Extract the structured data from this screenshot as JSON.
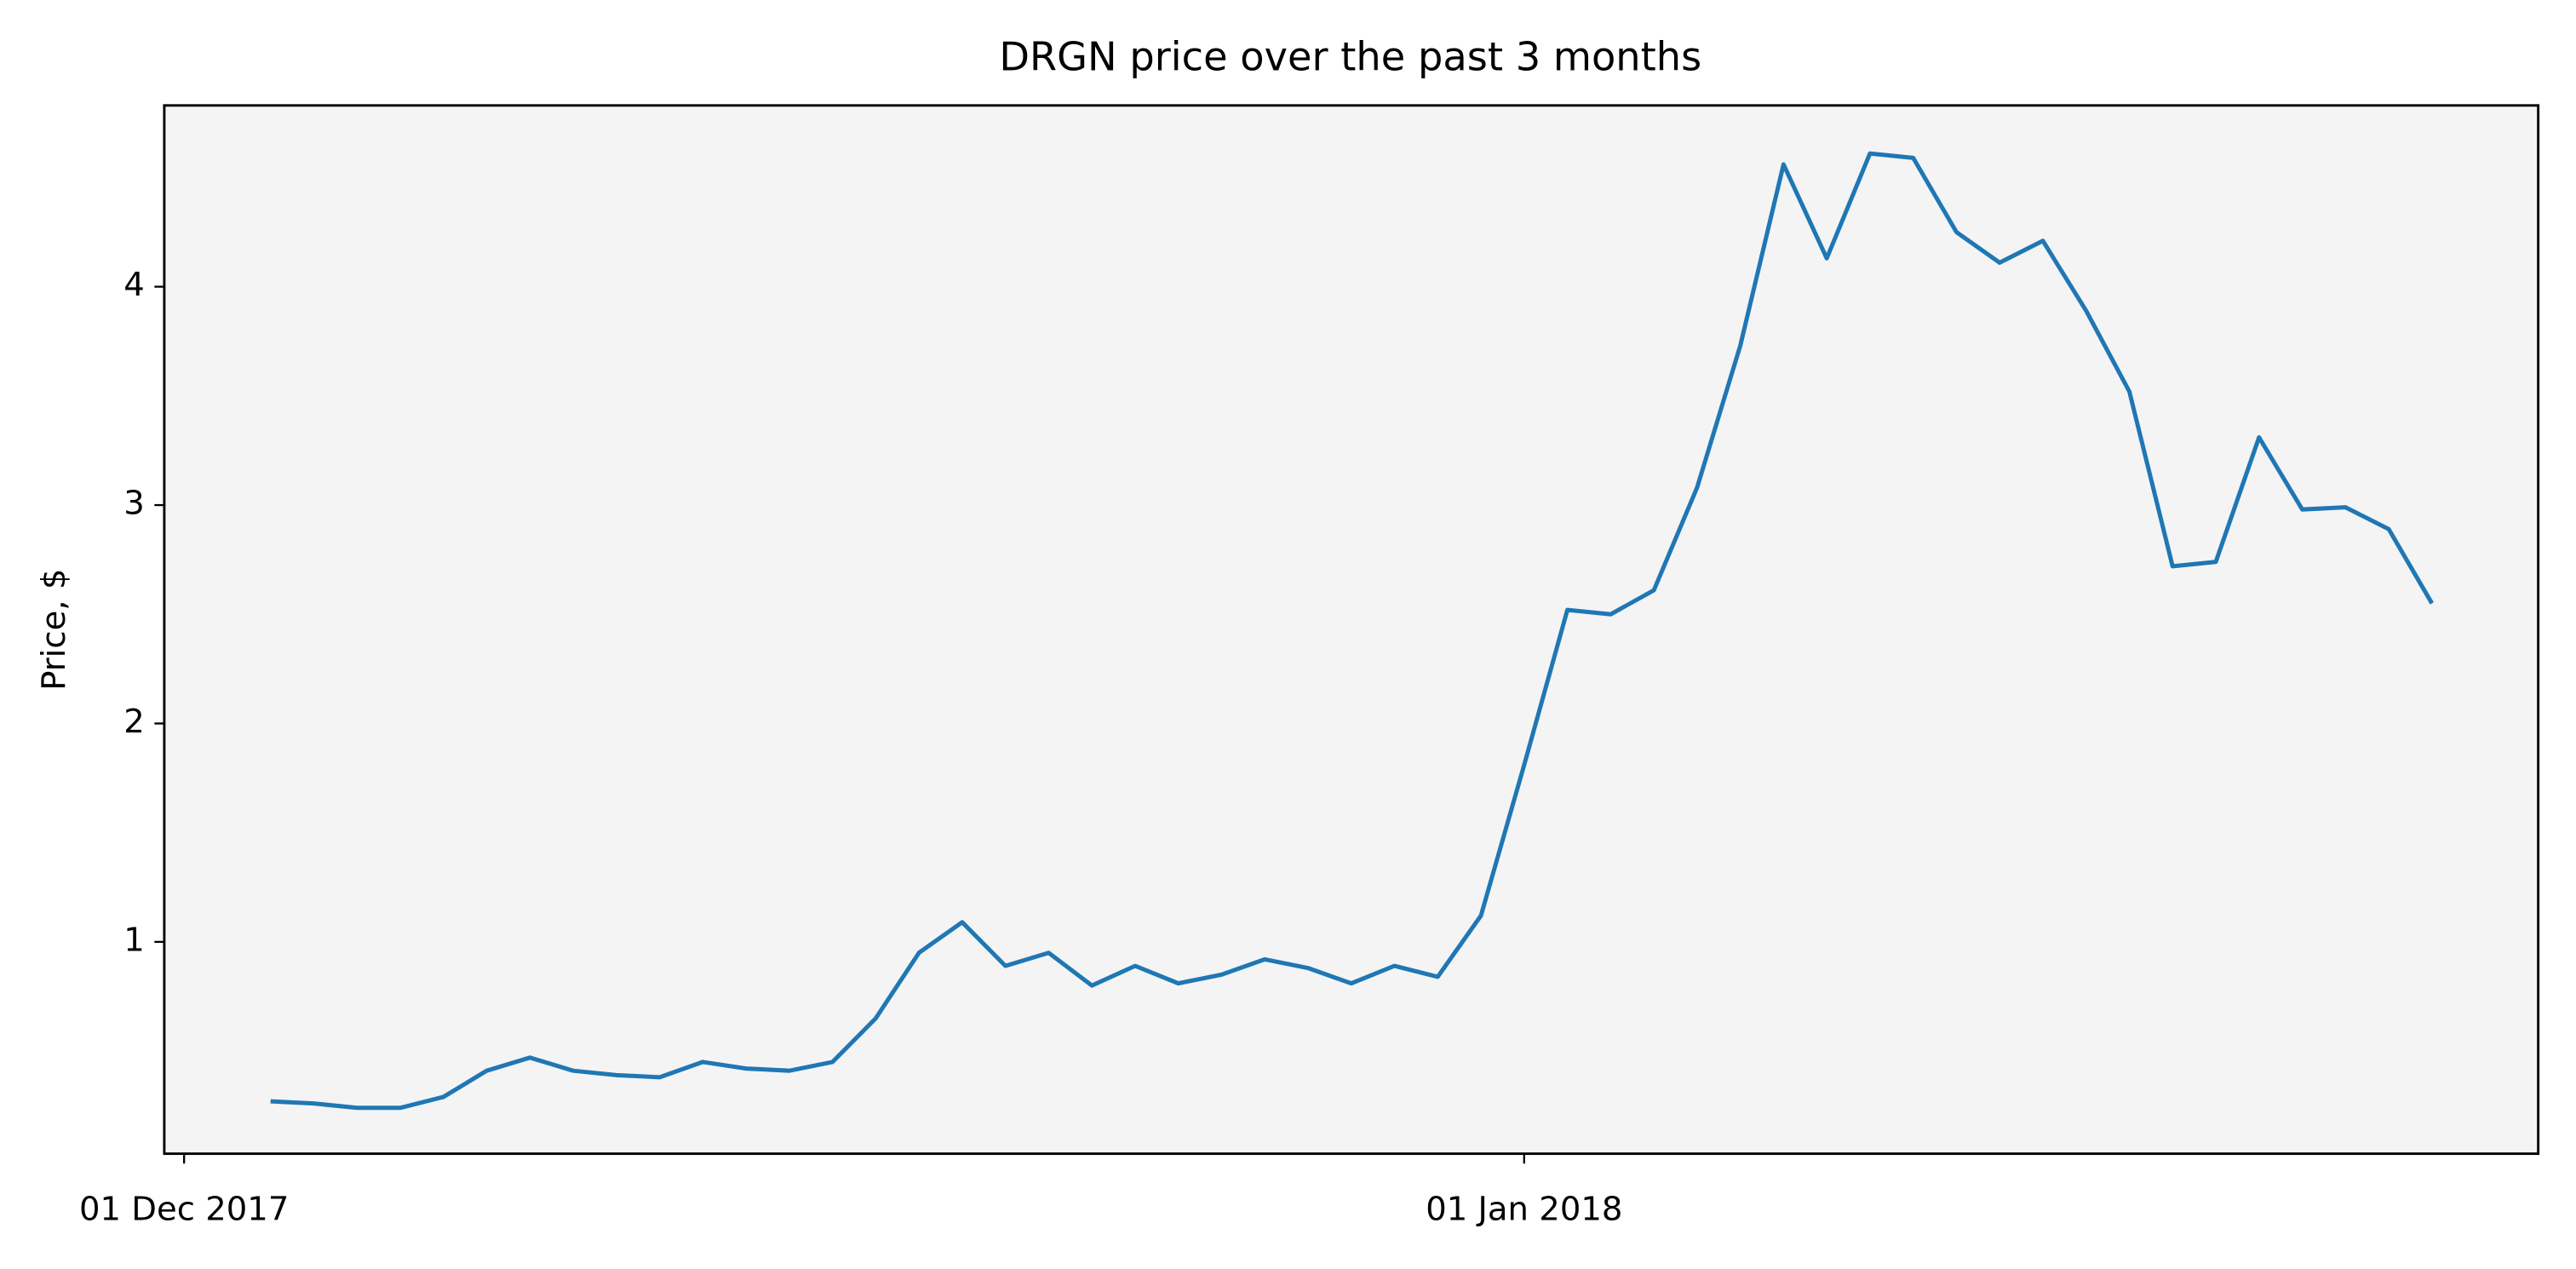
{
  "chart_data": {
    "type": "line",
    "title": "DRGN price over the past 3 months",
    "y_label": "Price, $",
    "x": [
      "2017-12-03",
      "2017-12-04",
      "2017-12-05",
      "2017-12-06",
      "2017-12-07",
      "2017-12-08",
      "2017-12-09",
      "2017-12-10",
      "2017-12-11",
      "2017-12-12",
      "2017-12-13",
      "2017-12-14",
      "2017-12-15",
      "2017-12-16",
      "2017-12-17",
      "2017-12-18",
      "2017-12-19",
      "2017-12-20",
      "2017-12-21",
      "2017-12-22",
      "2017-12-23",
      "2017-12-24",
      "2017-12-25",
      "2017-12-26",
      "2017-12-27",
      "2017-12-28",
      "2017-12-29",
      "2017-12-30",
      "2017-12-31",
      "2018-01-01",
      "2018-01-02",
      "2018-01-03",
      "2018-01-04",
      "2018-01-05",
      "2018-01-06",
      "2018-01-07",
      "2018-01-08",
      "2018-01-09",
      "2018-01-10",
      "2018-01-11",
      "2018-01-12",
      "2018-01-13",
      "2018-01-14",
      "2018-01-15",
      "2018-01-16",
      "2018-01-17",
      "2018-01-18",
      "2018-01-19",
      "2018-01-20",
      "2018-01-21",
      "2018-01-22"
    ],
    "series": [
      {
        "color": "#1f77b4",
        "values": [
          0.27,
          0.26,
          0.24,
          0.24,
          0.29,
          0.41,
          0.47,
          0.41,
          0.39,
          0.38,
          0.45,
          0.42,
          0.41,
          0.45,
          0.65,
          0.95,
          1.09,
          0.89,
          0.95,
          0.8,
          0.89,
          0.81,
          0.85,
          0.92,
          0.88,
          0.81,
          0.89,
          0.84,
          1.12,
          1.81,
          2.52,
          2.5,
          2.61,
          3.08,
          3.73,
          4.56,
          4.13,
          4.61,
          4.59,
          4.25,
          4.11,
          4.21,
          3.89,
          3.52,
          2.72,
          2.74,
          3.31,
          2.98,
          2.99,
          2.89,
          2.55
        ]
      }
    ],
    "xlim": [
      "2017-11-30T13:00",
      "2018-01-24T11:00"
    ],
    "xticks": [
      {
        "value": "2017-12-01",
        "label": "01 Dec 2017"
      },
      {
        "value": "2018-01-01",
        "label": "01 Jan 2018"
      }
    ],
    "ylim": [
      0.03,
      4.83
    ],
    "yticks": [
      1,
      2,
      3,
      4
    ],
    "background": "#f4f4f4"
  }
}
